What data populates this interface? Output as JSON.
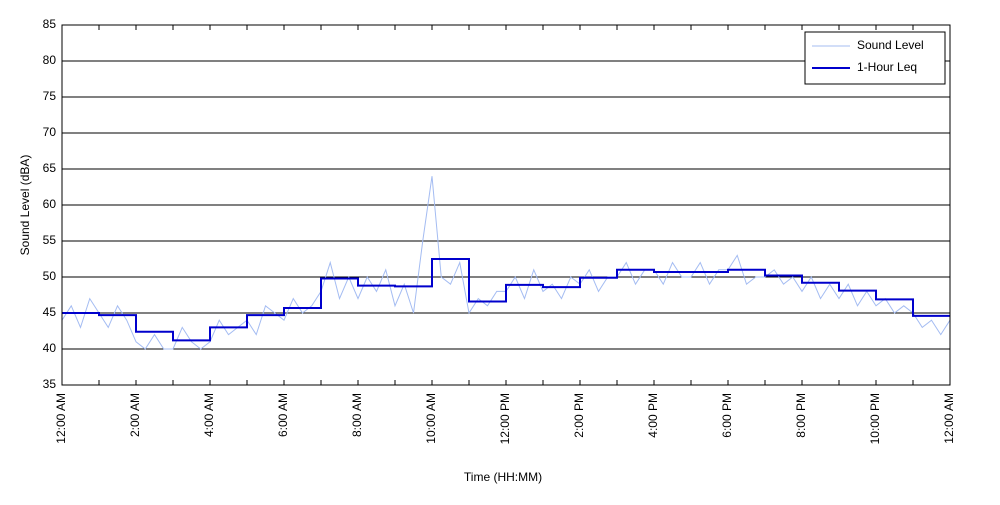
{
  "chart_data": {
    "type": "line",
    "xlabel": "Time (HH:MM)",
    "ylabel": "Sound Level (dBA)",
    "legend": "upper right",
    "grid": true,
    "xlim": [
      0,
      24
    ],
    "ylim": [
      35,
      85
    ],
    "yticks": [
      35,
      40,
      45,
      50,
      55,
      60,
      65,
      70,
      75,
      80,
      85
    ],
    "xticks": [
      {
        "value": 0,
        "label": "12:00 AM"
      },
      {
        "value": 2,
        "label": "2:00 AM"
      },
      {
        "value": 4,
        "label": "4:00 AM"
      },
      {
        "value": 6,
        "label": "6:00 AM"
      },
      {
        "value": 8,
        "label": "8:00 AM"
      },
      {
        "value": 10,
        "label": "10:00 AM"
      },
      {
        "value": 12,
        "label": "12:00 PM"
      },
      {
        "value": 14,
        "label": "2:00 PM"
      },
      {
        "value": 16,
        "label": "4:00 PM"
      },
      {
        "value": 18,
        "label": "6:00 PM"
      },
      {
        "value": 20,
        "label": "8:00 PM"
      },
      {
        "value": 22,
        "label": "10:00 PM"
      },
      {
        "value": 24,
        "label": "12:00 AM"
      }
    ],
    "xminorticks": [
      1,
      3,
      5,
      7,
      9,
      11,
      13,
      15,
      17,
      19,
      21,
      23
    ],
    "series": [
      {
        "name": "Sound Level",
        "color": "#a4bcf2",
        "style": "line",
        "x": [
          0,
          0.25,
          0.5,
          0.75,
          1,
          1.25,
          1.5,
          1.75,
          2,
          2.25,
          2.5,
          2.75,
          3,
          3.25,
          3.5,
          3.75,
          4,
          4.25,
          4.5,
          4.75,
          5,
          5.25,
          5.5,
          5.75,
          6,
          6.25,
          6.5,
          6.75,
          7,
          7.25,
          7.5,
          7.75,
          8,
          8.25,
          8.5,
          8.75,
          9,
          9.25,
          9.5,
          9.75,
          10,
          10.25,
          10.5,
          10.75,
          11,
          11.25,
          11.5,
          11.75,
          12,
          12.25,
          12.5,
          12.75,
          13,
          13.25,
          13.5,
          13.75,
          14,
          14.25,
          14.5,
          14.75,
          15,
          15.25,
          15.5,
          15.75,
          16,
          16.25,
          16.5,
          16.75,
          17,
          17.25,
          17.5,
          17.75,
          18,
          18.25,
          18.5,
          18.75,
          19,
          19.25,
          19.5,
          19.75,
          20,
          20.25,
          20.5,
          20.75,
          21,
          21.25,
          21.5,
          21.75,
          22,
          22.25,
          22.5,
          22.75,
          23,
          23.25,
          23.5,
          23.75,
          24
        ],
        "values": [
          44,
          46,
          43,
          47,
          45,
          43,
          46,
          44,
          41,
          40,
          42,
          40,
          40,
          43,
          41,
          40,
          41,
          44,
          42,
          43,
          44,
          42,
          46,
          45,
          44,
          47,
          45,
          46,
          48,
          52,
          47,
          50,
          47,
          50,
          48,
          51,
          46,
          49,
          45,
          55,
          64,
          50,
          49,
          52,
          45,
          47,
          46,
          48,
          48,
          50,
          47,
          51,
          48,
          49,
          47,
          50,
          49,
          51,
          48,
          50,
          50,
          52,
          49,
          51,
          51,
          49,
          52,
          50,
          50,
          52,
          49,
          51,
          51,
          53,
          49,
          50,
          50,
          51,
          49,
          50,
          48,
          50,
          47,
          49,
          47,
          49,
          46,
          48,
          46,
          47,
          45,
          46,
          45,
          43,
          44,
          42,
          44
        ]
      },
      {
        "name": "1-Hour Leq",
        "color": "#0000cc",
        "style": "step",
        "x": [
          0,
          1,
          2,
          3,
          4,
          5,
          6,
          7,
          8,
          9,
          10,
          11,
          12,
          13,
          14,
          15,
          16,
          17,
          18,
          19,
          20,
          21,
          22,
          23
        ],
        "values": [
          45.0,
          44.7,
          42.4,
          41.2,
          43.0,
          44.7,
          45.7,
          49.8,
          48.8,
          48.7,
          52.5,
          46.6,
          48.9,
          48.6,
          49.9,
          51.0,
          50.7,
          50.7,
          51.0,
          50.2,
          49.2,
          48.1,
          46.9,
          44.6
        ]
      }
    ]
  }
}
